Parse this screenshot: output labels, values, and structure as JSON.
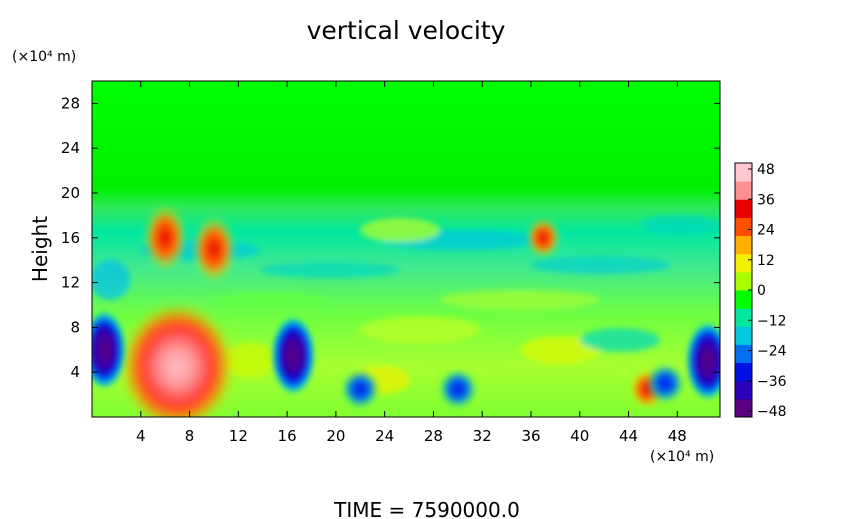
{
  "chart_data": {
    "type": "heatmap",
    "title": "vertical velocity",
    "ylabel": "Height",
    "xlabel": "",
    "x_unit_label": "(×10⁴ m)",
    "y_unit_label": "(×10⁴ m)",
    "xlim": [
      0,
      51.5
    ],
    "ylim": [
      0,
      30
    ],
    "xticks": [
      4,
      8,
      12,
      16,
      20,
      24,
      28,
      32,
      36,
      40,
      44,
      48
    ],
    "yticks": [
      4,
      8,
      12,
      16,
      20,
      24,
      28
    ],
    "colorbar": {
      "min": -48,
      "max": 48,
      "ticks": [
        48,
        36,
        24,
        12,
        0,
        -12,
        -24,
        -36,
        -48
      ],
      "colors": [
        "#5a0080",
        "#2b00b8",
        "#0010e0",
        "#0070f0",
        "#00c8e0",
        "#00e8a0",
        "#00ff00",
        "#a8ff00",
        "#f0f000",
        "#ffb000",
        "#ff5000",
        "#e80000",
        "#ff9090",
        "#ffc8d0"
      ]
    },
    "features": [
      {
        "kind": "updraft",
        "x": 7,
        "y": 4.5,
        "value": 48
      },
      {
        "kind": "updraft",
        "x": 6,
        "y": 16,
        "value": 36
      },
      {
        "kind": "updraft",
        "x": 10,
        "y": 15,
        "value": 36
      },
      {
        "kind": "updraft",
        "x": 37,
        "y": 16,
        "value": 30
      },
      {
        "kind": "updraft",
        "x": 45.5,
        "y": 2.5,
        "value": 30
      },
      {
        "kind": "downdraft",
        "x": 16.5,
        "y": 5.5,
        "value": -48
      },
      {
        "kind": "downdraft",
        "x": 1,
        "y": 6,
        "value": -48
      },
      {
        "kind": "downdraft",
        "x": 50.5,
        "y": 5,
        "value": -48
      },
      {
        "kind": "downdraft",
        "x": 22,
        "y": 2.5,
        "value": -36
      },
      {
        "kind": "downdraft",
        "x": 30,
        "y": 2.5,
        "value": -36
      },
      {
        "kind": "downdraft",
        "x": 47,
        "y": 3,
        "value": -36
      }
    ]
  },
  "footer": {
    "time_label": "TIME  =  7590000.0"
  }
}
